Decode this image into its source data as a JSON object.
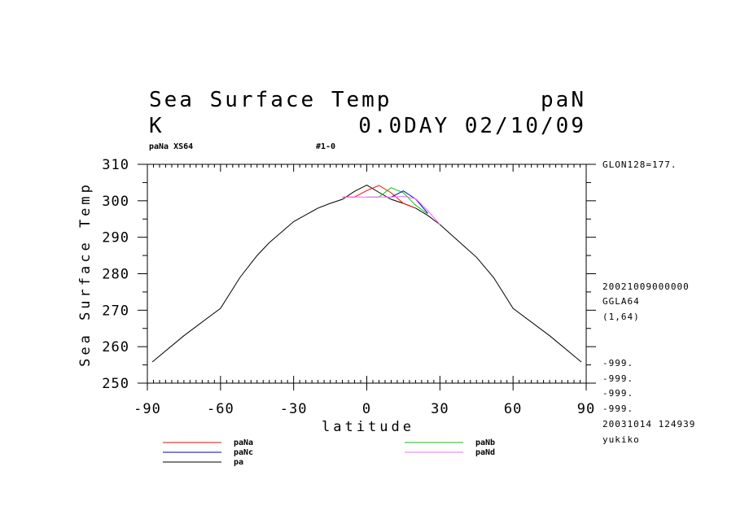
{
  "header": {
    "title": "Sea Surface Temp",
    "run": "paN",
    "unit": "K",
    "time": "0.0DAY 02/10/09",
    "subtitle_left": "paNa XS64",
    "subtitle_mid": "#1-0"
  },
  "side_info": {
    "glon": "GLON128=177.",
    "date": "20021009000000",
    "grid": "GGLA64",
    "range": "(1,64)",
    "undef": [
      "-999.",
      "-999.",
      "-999.",
      "-999."
    ],
    "created": "20031014 124939",
    "user": "yukiko"
  },
  "chart_data": {
    "type": "line",
    "title": "Sea Surface Temp",
    "xlabel": "latitude",
    "ylabel": "Sea Surface Temp",
    "xlim": [
      -90,
      90
    ],
    "ylim": [
      250,
      310
    ],
    "xticks": [
      "-90",
      "-60",
      "-30",
      "0",
      "30",
      "60",
      "90"
    ],
    "yticks": [
      "250",
      "260",
      "270",
      "280",
      "290",
      "300",
      "310"
    ],
    "grid": false,
    "legend_position": "bottom",
    "series": [
      {
        "name": "pa",
        "color": "#000000",
        "x": [
          -88,
          -75,
          -60,
          -52,
          -45,
          -40,
          -30,
          -20,
          -15,
          -10,
          -5,
          0,
          5,
          10,
          15,
          20,
          25,
          30,
          40,
          45,
          52,
          60,
          75,
          88
        ],
        "y": [
          255.8,
          263,
          270.5,
          279,
          285,
          288.5,
          294.3,
          298,
          299.3,
          300.4,
          302.6,
          304.3,
          302.3,
          300.4,
          299.3,
          298,
          296,
          293.5,
          287.5,
          284.5,
          279,
          270.5,
          263,
          255.8
        ]
      },
      {
        "name": "paNa",
        "color": "#ff0000",
        "x": [
          -10,
          -5,
          0,
          5,
          10,
          15,
          20
        ],
        "y": [
          301,
          301,
          302.8,
          304.2,
          302.2,
          299.3,
          298
        ]
      },
      {
        "name": "paNb",
        "color": "#00cc00",
        "x": [
          0,
          5,
          10,
          15,
          20,
          25
        ],
        "y": [
          301,
          301,
          303.6,
          302.2,
          298.8,
          296.4
        ]
      },
      {
        "name": "paNc",
        "color": "#0000cc",
        "x": [
          10,
          15,
          20,
          25
        ],
        "y": [
          301,
          302.7,
          300.5,
          296.6
        ]
      },
      {
        "name": "paNd",
        "color": "#ff66ff",
        "x": [
          -10,
          0,
          10,
          15,
          20,
          25,
          30
        ],
        "y": [
          301,
          301,
          301,
          301.2,
          300.6,
          297.3,
          293.5
        ]
      }
    ],
    "legend": [
      {
        "name": "paNa",
        "color": "#ff0000"
      },
      {
        "name": "paNc",
        "color": "#0000cc"
      },
      {
        "name": "pa",
        "color": "#000000"
      },
      {
        "name": "paNb",
        "color": "#00cc00"
      },
      {
        "name": "paNd",
        "color": "#ff66ff"
      }
    ]
  }
}
